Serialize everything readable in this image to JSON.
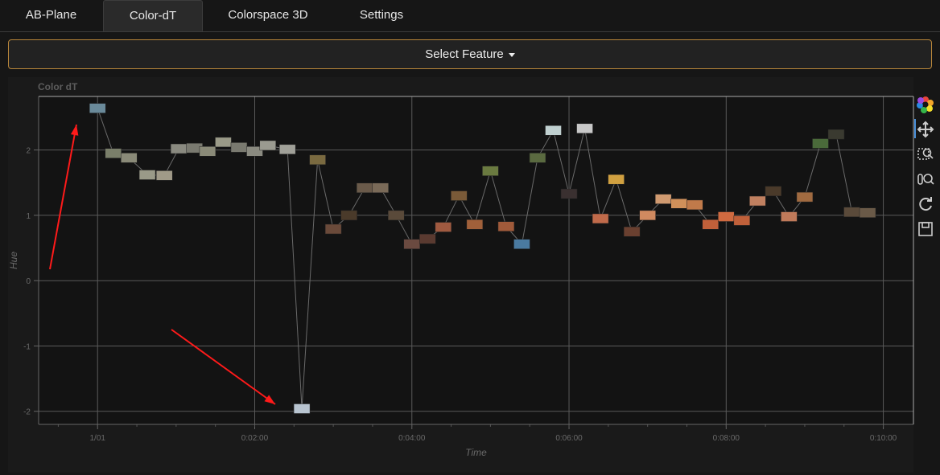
{
  "tabs": [
    {
      "label": "AB-Plane",
      "active": false
    },
    {
      "label": "Color-dT",
      "active": true
    },
    {
      "label": "Colorspace 3D",
      "active": false
    },
    {
      "label": "Settings",
      "active": false
    }
  ],
  "select_feature": {
    "label": "Select Feature"
  },
  "toolbar": {
    "icons": [
      "bokeh-logo-icon",
      "pan-icon",
      "box-zoom-icon",
      "wheel-zoom-icon",
      "reset-icon",
      "save-icon"
    ]
  },
  "chart_data": {
    "type": "scatter",
    "title": "Color dT",
    "xlabel": "Time",
    "ylabel": "Hue",
    "x_unit": "seconds",
    "xlim": [
      -45,
      623
    ],
    "ylim": [
      -2.2,
      2.82
    ],
    "x_ticks": [
      {
        "value": 0,
        "label": "1/01"
      },
      {
        "value": 120,
        "label": "0:02:00"
      },
      {
        "value": 240,
        "label": "0:04:00"
      },
      {
        "value": 360,
        "label": "0:06:00"
      },
      {
        "value": 480,
        "label": "0:08:00"
      },
      {
        "value": 600,
        "label": "0:10:00"
      }
    ],
    "y_ticks": [
      {
        "value": -2,
        "label": "-2"
      },
      {
        "value": -1,
        "label": "-1"
      },
      {
        "value": 0,
        "label": "0"
      },
      {
        "value": 1,
        "label": "1"
      },
      {
        "value": 2,
        "label": "2"
      }
    ],
    "grid": true,
    "point_marker": "image-thumbnail",
    "points": [
      {
        "t": 0,
        "hue": 2.64,
        "color": "#6a8a9a"
      },
      {
        "t": 12,
        "hue": 1.95,
        "color": "#7a7f6a"
      },
      {
        "t": 24,
        "hue": 1.88,
        "color": "#8a8a78"
      },
      {
        "t": 38,
        "hue": 1.62,
        "color": "#9a9a88"
      },
      {
        "t": 51,
        "hue": 1.61,
        "color": "#a09a88"
      },
      {
        "t": 62,
        "hue": 2.02,
        "color": "#8a8a80"
      },
      {
        "t": 74,
        "hue": 2.03,
        "color": "#7a7a70"
      },
      {
        "t": 84,
        "hue": 1.98,
        "color": "#8a8a78"
      },
      {
        "t": 96,
        "hue": 2.12,
        "color": "#9a9a88"
      },
      {
        "t": 108,
        "hue": 2.04,
        "color": "#7a7a70"
      },
      {
        "t": 120,
        "hue": 1.98,
        "color": "#8a8a80"
      },
      {
        "t": 130,
        "hue": 2.07,
        "color": "#9a9a90"
      },
      {
        "t": 145,
        "hue": 2.01,
        "color": "#a0a098"
      },
      {
        "t": 156,
        "hue": -1.96,
        "color": "#b8c4d0"
      },
      {
        "t": 168,
        "hue": 1.85,
        "color": "#7a6a40"
      },
      {
        "t": 180,
        "hue": 0.79,
        "color": "#6a4a3a"
      },
      {
        "t": 192,
        "hue": 1.0,
        "color": "#4a3a2a"
      },
      {
        "t": 204,
        "hue": 1.42,
        "color": "#6a5a4a"
      },
      {
        "t": 216,
        "hue": 1.42,
        "color": "#7a6a58"
      },
      {
        "t": 228,
        "hue": 1.0,
        "color": "#5a4a3a"
      },
      {
        "t": 240,
        "hue": 0.56,
        "color": "#6a4a40"
      },
      {
        "t": 252,
        "hue": 0.64,
        "color": "#5a3a30"
      },
      {
        "t": 264,
        "hue": 0.82,
        "color": "#a05a40"
      },
      {
        "t": 276,
        "hue": 1.3,
        "color": "#7a5a38"
      },
      {
        "t": 288,
        "hue": 0.86,
        "color": "#a0603a"
      },
      {
        "t": 300,
        "hue": 1.68,
        "color": "#6a7a40"
      },
      {
        "t": 312,
        "hue": 0.83,
        "color": "#a05a3a"
      },
      {
        "t": 324,
        "hue": 0.56,
        "color": "#4a7aa0"
      },
      {
        "t": 336,
        "hue": 1.88,
        "color": "#5a6a40"
      },
      {
        "t": 348,
        "hue": 2.3,
        "color": "#c0d0d0"
      },
      {
        "t": 360,
        "hue": 1.33,
        "color": "#3a3030"
      },
      {
        "t": 372,
        "hue": 2.33,
        "color": "#c8c8c8"
      },
      {
        "t": 384,
        "hue": 0.95,
        "color": "#c06a4a"
      },
      {
        "t": 396,
        "hue": 1.55,
        "color": "#d0a040"
      },
      {
        "t": 408,
        "hue": 0.75,
        "color": "#6a4030"
      },
      {
        "t": 420,
        "hue": 1.0,
        "color": "#d08a60"
      },
      {
        "t": 432,
        "hue": 1.25,
        "color": "#d09a70"
      },
      {
        "t": 444,
        "hue": 1.18,
        "color": "#d0905a"
      },
      {
        "t": 456,
        "hue": 1.16,
        "color": "#c07a4a"
      },
      {
        "t": 468,
        "hue": 0.86,
        "color": "#c0603a"
      },
      {
        "t": 480,
        "hue": 0.98,
        "color": "#d06a40"
      },
      {
        "t": 492,
        "hue": 0.92,
        "color": "#c0603a"
      },
      {
        "t": 504,
        "hue": 1.22,
        "color": "#c08060"
      },
      {
        "t": 516,
        "hue": 1.37,
        "color": "#4a3a2a"
      },
      {
        "t": 528,
        "hue": 0.98,
        "color": "#c07a5a"
      },
      {
        "t": 540,
        "hue": 1.28,
        "color": "#a06a40"
      },
      {
        "t": 552,
        "hue": 2.1,
        "color": "#4a6a3a"
      },
      {
        "t": 564,
        "hue": 2.24,
        "color": "#3a3a30"
      },
      {
        "t": 576,
        "hue": 1.05,
        "color": "#5a4a3a"
      },
      {
        "t": 588,
        "hue": 1.04,
        "color": "#6a5a48"
      }
    ]
  }
}
